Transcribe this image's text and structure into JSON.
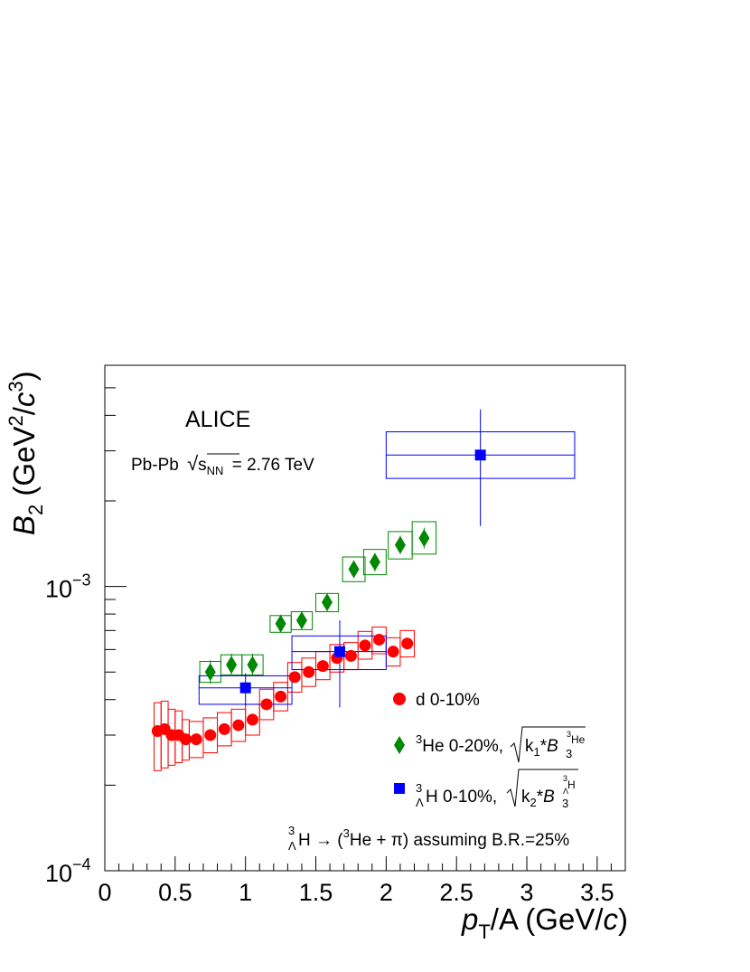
{
  "chart_data": {
    "type": "scatter",
    "title": "",
    "experiment_label": "ALICE",
    "collision_label": {
      "prefix": "Pb-Pb",
      "sqrt_symbol": "√",
      "s": "s",
      "sub": "NN",
      "suffix": "= 2.76 TeV"
    },
    "xlabel": {
      "main": "p",
      "sub": "T",
      "rest": "/A (GeV/",
      "c": "c",
      "close": ")"
    },
    "ylabel": {
      "main": "B",
      "sub": "2",
      "rest": " (GeV",
      "sup1": "2",
      "mid": "/",
      "c": "c",
      "sup2": "3",
      "close": ")"
    },
    "xlim": [
      0,
      3.7
    ],
    "ylim": [
      0.0001,
      0.006
    ],
    "y_scale": "log",
    "grid": false,
    "legend_position": "right",
    "x_ticks": [
      {
        "value": 0,
        "label": "0"
      },
      {
        "value": 0.5,
        "label": "0.5"
      },
      {
        "value": 1,
        "label": "1"
      },
      {
        "value": 1.5,
        "label": "1.5"
      },
      {
        "value": 2,
        "label": "2"
      },
      {
        "value": 2.5,
        "label": "2.5"
      },
      {
        "value": 3,
        "label": "3"
      },
      {
        "value": 3.5,
        "label": "3.5"
      }
    ],
    "y_ticks": [
      {
        "value": 0.0001,
        "base": "10",
        "exp": "−4"
      },
      {
        "value": 0.001,
        "base": "10",
        "exp": "−3"
      }
    ],
    "annotation": {
      "sub_top": "3",
      "sub_bottom": "Λ",
      "main": "H → (",
      "sup": "3",
      "rest": "He + π) assuming B.R.=25%"
    },
    "series": [
      {
        "name": "d 0-10%",
        "legend_text": "d 0-10%",
        "marker": "circle",
        "color": "#ff0000",
        "points": [
          {
            "x": 0.375,
            "y": 0.00031,
            "ex": 0.025,
            "sys_lo": 0.000225,
            "sys_hi": 0.00039
          },
          {
            "x": 0.425,
            "y": 0.000315,
            "ex": 0.025,
            "sys_lo": 0.00023,
            "sys_hi": 0.000395
          },
          {
            "x": 0.475,
            "y": 0.0003,
            "ex": 0.025,
            "sys_lo": 0.000235,
            "sys_hi": 0.00037
          },
          {
            "x": 0.525,
            "y": 0.0003,
            "ex": 0.025,
            "sys_lo": 0.00024,
            "sys_hi": 0.000365
          },
          {
            "x": 0.575,
            "y": 0.00029,
            "ex": 0.025,
            "sys_lo": 0.000245,
            "sys_hi": 0.00034
          },
          {
            "x": 0.65,
            "y": 0.00029,
            "ex": 0.05,
            "sys_lo": 0.00025,
            "sys_hi": 0.000335
          },
          {
            "x": 0.75,
            "y": 0.0003,
            "ex": 0.05,
            "sys_lo": 0.00026,
            "sys_hi": 0.000345
          },
          {
            "x": 0.85,
            "y": 0.000315,
            "ex": 0.05,
            "sys_lo": 0.000275,
            "sys_hi": 0.00036
          },
          {
            "x": 0.95,
            "y": 0.000325,
            "ex": 0.05,
            "sys_lo": 0.000285,
            "sys_hi": 0.00037
          },
          {
            "x": 1.05,
            "y": 0.00034,
            "ex": 0.05,
            "sys_lo": 0.0003,
            "sys_hi": 0.000385
          },
          {
            "x": 1.15,
            "y": 0.000385,
            "ex": 0.05,
            "sys_lo": 0.00034,
            "sys_hi": 0.000435
          },
          {
            "x": 1.25,
            "y": 0.00041,
            "ex": 0.05,
            "sys_lo": 0.000365,
            "sys_hi": 0.00046
          },
          {
            "x": 1.35,
            "y": 0.00048,
            "ex": 0.05,
            "sys_lo": 0.000425,
            "sys_hi": 0.00054
          },
          {
            "x": 1.45,
            "y": 0.0005,
            "ex": 0.05,
            "sys_lo": 0.000445,
            "sys_hi": 0.00056
          },
          {
            "x": 1.55,
            "y": 0.000525,
            "ex": 0.05,
            "sys_lo": 0.00047,
            "sys_hi": 0.00059
          },
          {
            "x": 1.65,
            "y": 0.00056,
            "ex": 0.05,
            "sys_lo": 0.0005,
            "sys_hi": 0.000625
          },
          {
            "x": 1.75,
            "y": 0.00057,
            "ex": 0.05,
            "sys_lo": 0.00051,
            "sys_hi": 0.000635
          },
          {
            "x": 1.85,
            "y": 0.00062,
            "ex": 0.05,
            "sys_lo": 0.000555,
            "sys_hi": 0.000695
          },
          {
            "x": 1.95,
            "y": 0.00065,
            "ex": 0.05,
            "sys_lo": 0.00058,
            "sys_hi": 0.00072
          },
          {
            "x": 2.05,
            "y": 0.00059,
            "ex": 0.05,
            "sys_lo": 0.000525,
            "sys_hi": 0.00066
          },
          {
            "x": 2.15,
            "y": 0.00063,
            "ex": 0.05,
            "sys_lo": 0.000565,
            "sys_hi": 0.0007
          }
        ]
      },
      {
        "name": "3He 0-20%",
        "legend_sup": "3",
        "legend_text": "He 0-20%,",
        "legend_formula": {
          "k": "k",
          "k_sub": "1",
          "op": "*",
          "B": "B",
          "B_sub": "3",
          "B_sup_pre": "3",
          "B_sup": "He"
        },
        "marker": "diamond",
        "color": "#008800",
        "points": [
          {
            "x": 0.75,
            "y": 0.0005,
            "ex": 0.075,
            "stat_lo": 0.000455,
            "stat_hi": 0.00055,
            "sys_lo": 0.00046,
            "sys_hi": 0.000545
          },
          {
            "x": 0.9,
            "y": 0.00053,
            "ex": 0.075,
            "stat_lo": 0.000485,
            "stat_hi": 0.00058,
            "sys_lo": 0.000488,
            "sys_hi": 0.000575
          },
          {
            "x": 1.05,
            "y": 0.00053,
            "ex": 0.075,
            "stat_lo": 0.000485,
            "stat_hi": 0.00058,
            "sys_lo": 0.000488,
            "sys_hi": 0.000575
          },
          {
            "x": 1.25,
            "y": 0.00074,
            "ex": 0.075,
            "stat_lo": 0.00069,
            "stat_hi": 0.000795,
            "sys_lo": 0.00069,
            "sys_hi": 0.00079
          },
          {
            "x": 1.4,
            "y": 0.00076,
            "ex": 0.075,
            "stat_lo": 0.000705,
            "stat_hi": 0.00082,
            "sys_lo": 0.000705,
            "sys_hi": 0.000815
          },
          {
            "x": 1.58,
            "y": 0.00088,
            "ex": 0.08,
            "stat_lo": 0.00082,
            "stat_hi": 0.000945,
            "sys_lo": 0.000815,
            "sys_hi": 0.000945
          },
          {
            "x": 1.77,
            "y": 0.00115,
            "ex": 0.08,
            "stat_lo": 0.001075,
            "stat_hi": 0.001235,
            "sys_lo": 0.00104,
            "sys_hi": 0.00127
          },
          {
            "x": 1.92,
            "y": 0.00122,
            "ex": 0.08,
            "stat_lo": 0.00113,
            "stat_hi": 0.00131,
            "sys_lo": 0.0011,
            "sys_hi": 0.00135
          },
          {
            "x": 2.1,
            "y": 0.0014,
            "ex": 0.085,
            "stat_lo": 0.0013,
            "stat_hi": 0.00151,
            "sys_lo": 0.00125,
            "sys_hi": 0.00156
          },
          {
            "x": 2.27,
            "y": 0.00148,
            "ex": 0.085,
            "stat_lo": 0.00136,
            "stat_hi": 0.00161,
            "sys_lo": 0.0013,
            "sys_hi": 0.00169
          }
        ]
      },
      {
        "name": "3ΛH 0-10%",
        "legend_sub_top": "3",
        "legend_sub_bottom": "Λ",
        "legend_text": "H 0-10%,",
        "legend_formula": {
          "k": "k",
          "k_sub": "2",
          "op": "*",
          "B": "B",
          "B_sub": "3",
          "B_sup_pre": "3",
          "B_sup_lambda": "Λ",
          "B_sup": "H"
        },
        "marker": "square",
        "color": "#0000ff",
        "points": [
          {
            "x": 1.0,
            "y": 0.00044,
            "x_lo": 0.67,
            "x_hi": 1.33,
            "stat_lo": 0.00038,
            "stat_hi": 0.000495,
            "sys_lo": 0.000385,
            "sys_hi": 0.000485
          },
          {
            "x": 1.67,
            "y": 0.00059,
            "x_lo": 1.33,
            "x_hi": 2.0,
            "stat_lo": 0.000375,
            "stat_hi": 0.00076,
            "sys_lo": 0.00051,
            "sys_hi": 0.00067
          },
          {
            "x": 2.67,
            "y": 0.0029,
            "x_lo": 2.0,
            "x_hi": 3.34,
            "stat_lo": 0.00163,
            "stat_hi": 0.0042,
            "sys_lo": 0.0024,
            "sys_hi": 0.0035
          }
        ]
      }
    ]
  }
}
